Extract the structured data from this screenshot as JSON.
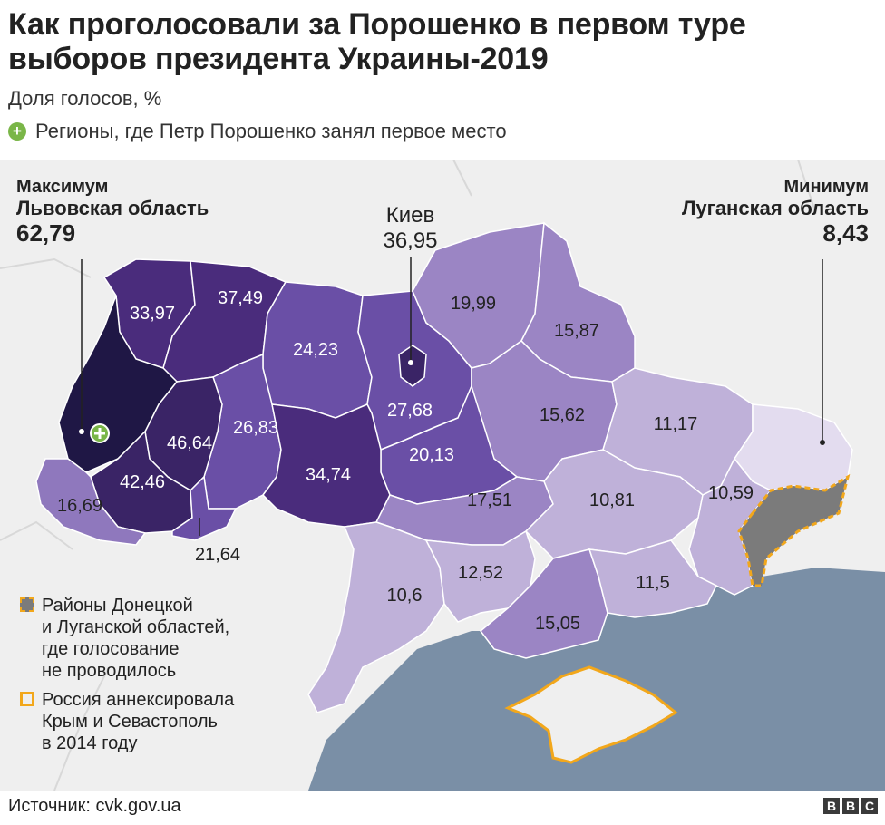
{
  "header": {
    "title_line1": "Как проголосовали за Порошенко в первом туре",
    "title_line2": "выборов президента Украины-2019",
    "subtitle": "Доля голосов, %",
    "first_place_legend": "Регионы, где Петр Порошенко занял первое место"
  },
  "annotations": {
    "max_label": "Максимум",
    "max_region": "Львовская область",
    "max_value": "62,79",
    "min_label": "Минимум",
    "min_region": "Луганская область",
    "min_value": "8,43",
    "kiev_name": "Киев",
    "kiev_value": "36,95",
    "odesa_pointer_value": "21,64"
  },
  "regions": [
    {
      "id": "lviv",
      "value": "62,79",
      "color": "#1f1745"
    },
    {
      "id": "volyn",
      "value": "33,97",
      "color": "#4a2c7c"
    },
    {
      "id": "rivne",
      "value": "37,49",
      "color": "#4a2c7c"
    },
    {
      "id": "zhytomyr",
      "value": "24,23",
      "color": "#6a4fa6"
    },
    {
      "id": "kyiv-oblast",
      "value": "27,68",
      "color": "#6a4fa6"
    },
    {
      "id": "kyiv-city",
      "value": "36,95",
      "color": "#3a2466"
    },
    {
      "id": "chernihiv",
      "value": "19,99",
      "color": "#9b85c4"
    },
    {
      "id": "sumy",
      "value": "15,87",
      "color": "#9b85c4"
    },
    {
      "id": "kharkiv",
      "value": "11,17",
      "color": "#bfb1d9"
    },
    {
      "id": "luhansk",
      "value": "8,43",
      "color": "#e3dcef"
    },
    {
      "id": "poltava",
      "value": "15,62",
      "color": "#9b85c4"
    },
    {
      "id": "cherkasy",
      "value": "20,13",
      "color": "#6a4fa6"
    },
    {
      "id": "khmelnytskyi",
      "value": "26,83",
      "color": "#6a4fa6"
    },
    {
      "id": "ternopil",
      "value": "46,64",
      "color": "#3a2466"
    },
    {
      "id": "ivano-frankivsk",
      "value": "42,46",
      "color": "#3a2466"
    },
    {
      "id": "zakarpattia",
      "value": "16,69",
      "color": "#8f78bd"
    },
    {
      "id": "chernivtsi",
      "value": "21,64",
      "color": "#6a4fa6"
    },
    {
      "id": "vinnytsia",
      "value": "34,74",
      "color": "#4a2c7c"
    },
    {
      "id": "kirovohrad",
      "value": "17,51",
      "color": "#9b85c4"
    },
    {
      "id": "dnipropetrovsk",
      "value": "10,81",
      "color": "#bfb1d9"
    },
    {
      "id": "donetsk",
      "value": "10,59",
      "color": "#bfb1d9"
    },
    {
      "id": "odesa",
      "value": "10,6",
      "color": "#bfb1d9"
    },
    {
      "id": "mykolaiv",
      "value": "12,52",
      "color": "#bfb1d9"
    },
    {
      "id": "kherson",
      "value": "15,05",
      "color": "#9b85c4"
    },
    {
      "id": "zaporizhzhia",
      "value": "11,5",
      "color": "#bfb1d9"
    }
  ],
  "legend": {
    "no_vote_line1": "Районы Донецкой",
    "no_vote_line2": "и Луганской областей,",
    "no_vote_line3": "где голосование",
    "no_vote_line4": "не проводилось",
    "annexed_line1": "Россия аннексировала",
    "annexed_line2": "Крым и Севастополь",
    "annexed_line3": "в 2014 году"
  },
  "footer": {
    "source": "Источник: cvk.gov.ua",
    "logo_letters": [
      "B",
      "B",
      "C"
    ]
  },
  "colors": {
    "sea": "#7a8fa6",
    "land_bg": "#efefef",
    "no_vote": "#7b7b7b",
    "annex_border": "#f2a71b",
    "first_place_marker": "#7ab648"
  },
  "icons": {
    "first_place": "plus-circle-icon",
    "bbc_logo": "bbc-logo"
  }
}
